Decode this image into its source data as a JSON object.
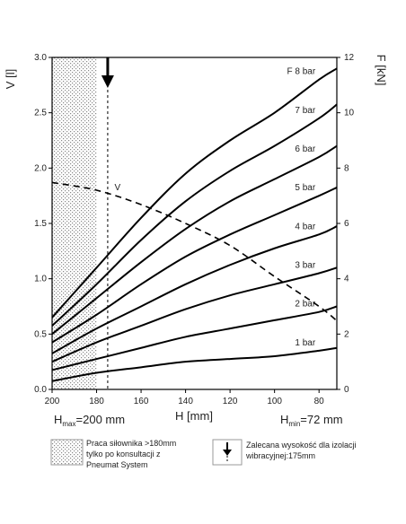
{
  "chart_data": {
    "type": "line",
    "x_label": "H [mm]",
    "y_label": "V [l]",
    "y2_label": "F [kN]",
    "x": [
      200,
      180,
      160,
      140,
      120,
      100,
      80,
      72
    ],
    "xlim": [
      200,
      72
    ],
    "xticks": [
      200,
      180,
      160,
      140,
      120,
      100,
      80
    ],
    "ylim": [
      0,
      3
    ],
    "yticks": [
      {
        "value": 0,
        "label": "0.0"
      },
      0.5,
      {
        "value": 1,
        "label": "1.0"
      },
      1.5,
      {
        "value": 2,
        "label": "2.0"
      },
      2.5,
      {
        "value": 3,
        "label": "3.0"
      }
    ],
    "y2lim": [
      0,
      12
    ],
    "y2ticks": [
      0,
      2,
      4,
      6,
      8,
      10,
      12
    ],
    "series": [
      {
        "name": "F 8 bar",
        "color": "#000000",
        "axis": "y2",
        "values": [
          2.6,
          4.4,
          6.2,
          7.8,
          9.0,
          10.0,
          11.2,
          11.6
        ]
      },
      {
        "name": "7 bar",
        "color": "#000000",
        "axis": "y2",
        "values": [
          2.3,
          3.8,
          5.4,
          6.8,
          7.9,
          8.8,
          9.8,
          10.3
        ]
      },
      {
        "name": "6 bar",
        "color": "#000000",
        "axis": "y2",
        "values": [
          2.0,
          3.3,
          4.6,
          5.8,
          6.8,
          7.6,
          8.4,
          8.8
        ]
      },
      {
        "name": "5 bar",
        "color": "#000000",
        "axis": "y2",
        "values": [
          1.7,
          2.7,
          3.8,
          4.8,
          5.6,
          6.3,
          7.0,
          7.3
        ]
      },
      {
        "name": "4 bar",
        "color": "#000000",
        "axis": "y2",
        "values": [
          1.3,
          2.2,
          3.0,
          3.8,
          4.5,
          5.1,
          5.6,
          5.9
        ]
      },
      {
        "name": "3 bar",
        "color": "#000000",
        "axis": "y2",
        "values": [
          1.0,
          1.7,
          2.3,
          2.9,
          3.4,
          3.8,
          4.2,
          4.4
        ]
      },
      {
        "name": "2 bar",
        "color": "#000000",
        "axis": "y2",
        "values": [
          0.7,
          1.1,
          1.5,
          1.9,
          2.2,
          2.5,
          2.8,
          3.0
        ]
      },
      {
        "name": "1 bar",
        "color": "#000000",
        "axis": "y2",
        "values": [
          0.3,
          0.6,
          0.8,
          1.0,
          1.1,
          1.2,
          1.4,
          1.5
        ]
      },
      {
        "name": "V",
        "color": "#000000",
        "axis": "y",
        "dashed": true,
        "values": [
          1.87,
          1.8,
          1.67,
          1.5,
          1.3,
          1.02,
          0.75,
          0.62
        ]
      }
    ],
    "hatched_from": 200,
    "hatched_to": 180,
    "recommended_h": 175,
    "hmax": {
      "main": "H",
      "sub": "max",
      "rest": "=200 mm"
    },
    "hmin": {
      "main": "H",
      "sub": "min",
      "rest": "=72 mm"
    },
    "legend_hatch_lines": [
      "Praca siłownika >180mm",
      "tylko po konsultacji z",
      "Pneumat System"
    ],
    "legend_arrow_lines": [
      "Zalecana wysokość dla izolacji",
      "wibracyjnej:175mm"
    ]
  }
}
